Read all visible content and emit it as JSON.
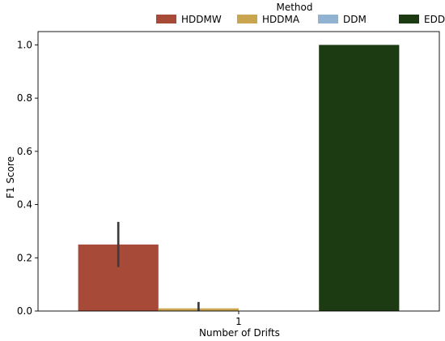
{
  "chart_data": {
    "type": "bar",
    "xlabel": "Number of Drifts",
    "ylabel": "F1 Score",
    "categories": [
      "1"
    ],
    "ylim": [
      0,
      1.05
    ],
    "yticks": [
      "0.0",
      "0.2",
      "0.4",
      "0.6",
      "0.8",
      "1.0"
    ],
    "grid": false,
    "legend": {
      "title": "Method",
      "placement": "top-center",
      "columns": 4
    },
    "series": [
      {
        "name": "HDDMW",
        "color": "#a84a38",
        "values": [
          0.25
        ],
        "error_low": [
          0.165
        ],
        "error_high": [
          0.335
        ]
      },
      {
        "name": "HDDMA",
        "color": "#c9a550",
        "values": [
          0.01
        ],
        "error_low": [
          0.0
        ],
        "error_high": [
          0.034
        ]
      },
      {
        "name": "DDM",
        "color": "#8fb3d1",
        "values": [
          0.0
        ],
        "error_low": [
          0.0
        ],
        "error_high": [
          0.0
        ]
      },
      {
        "name": "EDDM",
        "color": "#1d3b12",
        "values": [
          1.0
        ],
        "error_low": [
          1.0
        ],
        "error_high": [
          1.0
        ]
      }
    ]
  }
}
